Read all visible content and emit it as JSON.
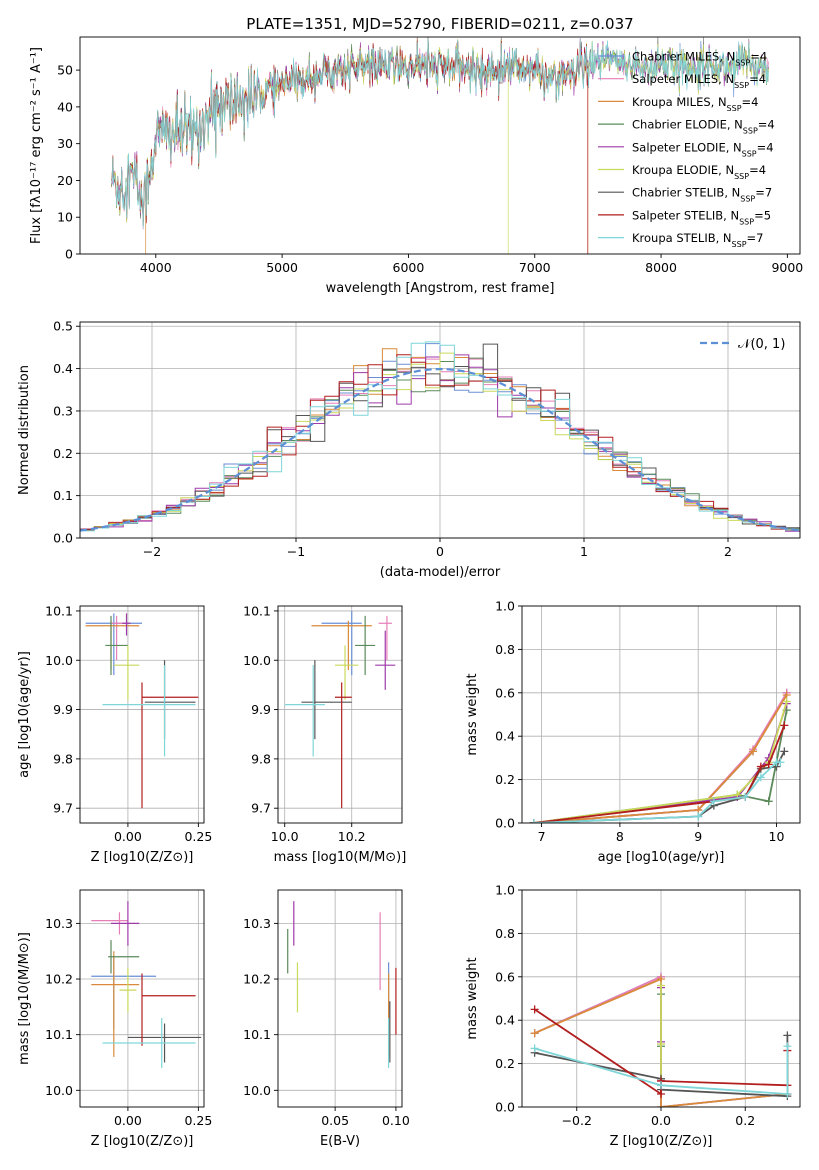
{
  "figure_title": "PLATE=1351, MJD=52790, FIBERID=0211, z=0.037",
  "series_colors": [
    "#6a8fd6",
    "#e67fb8",
    "#d98a3a",
    "#5b8a5b",
    "#9e3aa8",
    "#c9d95a",
    "#555555",
    "#b21e1e",
    "#7fd6d9"
  ],
  "chart_data": [
    {
      "id": "spectrum",
      "type": "line",
      "title": "PLATE=1351, MJD=52790, FIBERID=0211, z=0.037",
      "xlabel": "wavelength [Angstrom, rest frame]",
      "ylabel": "Flux [fλ10⁻¹⁷ erg cm⁻² s⁻¹ A⁻¹]",
      "xlim": [
        3400,
        9100
      ],
      "ylim": [
        0,
        59
      ],
      "xticks": [
        4000,
        5000,
        6000,
        7000,
        8000,
        9000
      ],
      "yticks": [
        0,
        10,
        20,
        30,
        40,
        50
      ],
      "grid": false,
      "legend_position": "right",
      "legend": [
        "Chabrier MILES, N_SSP=4",
        "Salpeter MILES, N_SSP=4",
        "Kroupa MILES, N_SSP=4",
        "Chabrier ELODIE, N_SSP=4",
        "Salpeter ELODIE, N_SSP=4",
        "Kroupa ELODIE, N_SSP=4",
        "Chabrier STELIB, N_SSP=7",
        "Salpeter STELIB, N_SSP=5",
        "Kroupa STELIB, N_SSP=7"
      ],
      "continuum": {
        "x": [
          3650,
          3700,
          3760,
          3800,
          3850,
          3900,
          3950,
          4000,
          4100,
          4200,
          4300,
          4400,
          4500,
          4600,
          4700,
          4800,
          4900,
          5000,
          5100,
          5200,
          5300,
          5400,
          5500,
          5600,
          5700,
          5800,
          5900,
          6000,
          6100,
          6200,
          6300,
          6400,
          6500,
          6600,
          6700,
          6800,
          6900,
          7000,
          7100,
          7200,
          7300,
          7400,
          7500,
          7600,
          7700,
          7800,
          7900,
          8000,
          8100,
          8200,
          8300,
          8400,
          8500,
          8600,
          8700,
          8800,
          8850
        ],
        "y": [
          21,
          18,
          20,
          22,
          19,
          13,
          22,
          32,
          33,
          33,
          33,
          37,
          40,
          41,
          42,
          43,
          45,
          46,
          47,
          48,
          49,
          50,
          50,
          51,
          51,
          51,
          51,
          51,
          51,
          51,
          51,
          51,
          50,
          50,
          50,
          51,
          51,
          50,
          48,
          49,
          48,
          51,
          52,
          53,
          51,
          52,
          50,
          52,
          51,
          51,
          52,
          51,
          51,
          52,
          51,
          51,
          50
        ]
      },
      "dropouts": [
        {
          "series": 2,
          "x": 3920
        },
        {
          "series": 5,
          "x": 6790
        },
        {
          "series": 2,
          "x": 7420
        },
        {
          "series": 7,
          "x": 7420
        }
      ]
    },
    {
      "id": "residuals",
      "type": "histogram",
      "xlabel": "(data-model)/error",
      "ylabel": "Normed distribution",
      "xlim": [
        -2.5,
        2.5
      ],
      "ylim": [
        0,
        0.51
      ],
      "xticks": [
        -2,
        -1,
        0,
        1,
        2
      ],
      "yticks": [
        0.0,
        0.1,
        0.2,
        0.3,
        0.4,
        0.5
      ],
      "grid": true,
      "bin_width": 0.1,
      "reference_label": "𝒩(0, 1)",
      "legend_position": "upper right"
    },
    {
      "id": "age_vs_Z",
      "type": "errorbar",
      "xlabel": "Z [log10(Z/Z⊙)]",
      "ylabel": "age  [log10(age/yr)]",
      "xlim": [
        -0.17,
        0.27
      ],
      "ylim": [
        9.67,
        10.11
      ],
      "xticks": [
        -0.25,
        0.0,
        0.25
      ],
      "xticklabels": [
        "",
        "0.00",
        "0.25"
      ],
      "yticks": [
        9.7,
        9.8,
        9.9,
        10.0,
        10.1
      ],
      "grid": true,
      "points": [
        {
          "s": 0,
          "x": -0.05,
          "y": 10.075,
          "xl": -0.15,
          "xh": 0.05,
          "yl": 9.97,
          "yh": 10.095
        },
        {
          "s": 1,
          "x": -0.04,
          "y": 10.075,
          "xl": -0.06,
          "xh": -0.01,
          "yl": 10.0,
          "yh": 10.09
        },
        {
          "s": 2,
          "x": -0.06,
          "y": 10.07,
          "xl": -0.15,
          "xh": 0.04,
          "yl": 9.98,
          "yh": 10.08
        },
        {
          "s": 3,
          "x": -0.06,
          "y": 10.03,
          "xl": -0.08,
          "xh": 0.0,
          "yl": 9.97,
          "yh": 10.09
        },
        {
          "s": 4,
          "x": -0.005,
          "y": 10.075,
          "xl": -0.02,
          "xh": 0.01,
          "yl": 10.05,
          "yh": 10.095
        },
        {
          "s": 5,
          "x": 0.0,
          "y": 9.99,
          "xl": -0.05,
          "xh": 0.04,
          "yl": 9.92,
          "yh": 10.03
        },
        {
          "s": 6,
          "x": 0.13,
          "y": 9.915,
          "xl": 0.06,
          "xh": 0.24,
          "yl": 9.84,
          "yh": 10.0
        },
        {
          "s": 7,
          "x": 0.05,
          "y": 9.925,
          "xl": 0.05,
          "xh": 0.25,
          "yl": 9.7,
          "yh": 9.955
        },
        {
          "s": 8,
          "x": 0.13,
          "y": 9.91,
          "xl": -0.09,
          "xh": 0.24,
          "yl": 9.805,
          "yh": 9.99
        }
      ]
    },
    {
      "id": "age_vs_mass",
      "type": "errorbar",
      "xlabel": "mass [log10(M/M⊙)]",
      "xlim": [
        9.98,
        10.35
      ],
      "ylim": [
        9.67,
        10.11
      ],
      "xticks": [
        10.0,
        10.2
      ],
      "yticks": [
        9.7,
        9.8,
        9.9,
        10.0,
        10.1
      ],
      "grid": true,
      "points": [
        {
          "s": 0,
          "x": 10.2,
          "y": 10.075,
          "xl": 10.11,
          "xh": 10.23,
          "yl": 9.97,
          "yh": 10.1
        },
        {
          "s": 1,
          "x": 10.305,
          "y": 10.075,
          "xl": 10.28,
          "xh": 10.32,
          "yl": 10.0,
          "yh": 10.09
        },
        {
          "s": 2,
          "x": 10.19,
          "y": 10.07,
          "xl": 10.08,
          "xh": 10.26,
          "yl": 9.98,
          "yh": 10.08
        },
        {
          "s": 3,
          "x": 10.24,
          "y": 10.03,
          "xl": 10.21,
          "xh": 10.27,
          "yl": 9.97,
          "yh": 10.09
        },
        {
          "s": 4,
          "x": 10.3,
          "y": 9.99,
          "xl": 10.27,
          "xh": 10.33,
          "yl": 9.94,
          "yh": 10.06
        },
        {
          "s": 5,
          "x": 10.18,
          "y": 9.99,
          "xl": 10.15,
          "xh": 10.22,
          "yl": 9.92,
          "yh": 10.03
        },
        {
          "s": 6,
          "x": 10.09,
          "y": 9.915,
          "xl": 10.05,
          "xh": 10.2,
          "yl": 9.84,
          "yh": 10.0
        },
        {
          "s": 7,
          "x": 10.17,
          "y": 9.925,
          "xl": 10.15,
          "xh": 10.2,
          "yl": 9.7,
          "yh": 9.955
        },
        {
          "s": 8,
          "x": 10.085,
          "y": 9.91,
          "xl": 10.0,
          "xh": 10.12,
          "yl": 9.805,
          "yh": 9.99
        }
      ]
    },
    {
      "id": "weight_vs_age",
      "type": "line",
      "xlabel": "age  [log10(age/yr)]",
      "ylabel": "mass weight",
      "xlim": [
        6.75,
        10.3
      ],
      "ylim": [
        0,
        1
      ],
      "xticks": [
        7,
        8,
        9,
        10
      ],
      "yticks": [
        0.0,
        0.2,
        0.4,
        0.6,
        0.8,
        1.0
      ],
      "grid": true,
      "series": [
        {
          "s": 0,
          "x": [
            6.9,
            9.0,
            9.7,
            10.13
          ],
          "y": [
            0.0,
            0.06,
            0.33,
            0.6
          ]
        },
        {
          "s": 1,
          "x": [
            6.9,
            9.0,
            9.7,
            10.13
          ],
          "y": [
            0.0,
            0.06,
            0.34,
            0.6
          ]
        },
        {
          "s": 2,
          "x": [
            6.9,
            9.0,
            9.7,
            10.13
          ],
          "y": [
            0.0,
            0.06,
            0.33,
            0.59
          ]
        },
        {
          "s": 3,
          "x": [
            6.9,
            9.5,
            9.9,
            10.13
          ],
          "y": [
            0.0,
            0.13,
            0.1,
            0.52
          ]
        },
        {
          "s": 4,
          "x": [
            6.9,
            9.5,
            9.9,
            10.13
          ],
          "y": [
            0.0,
            0.12,
            0.3,
            0.55
          ]
        },
        {
          "s": 5,
          "x": [
            6.9,
            9.5,
            9.9,
            10.13
          ],
          "y": [
            0.0,
            0.13,
            0.28,
            0.56
          ]
        },
        {
          "s": 6,
          "x": [
            6.9,
            9.0,
            9.2,
            9.6,
            9.8,
            10.0,
            10.1
          ],
          "y": [
            0.0,
            0.03,
            0.08,
            0.12,
            0.25,
            0.26,
            0.33
          ]
        },
        {
          "s": 7,
          "x": [
            6.9,
            9.2,
            9.6,
            9.8,
            9.9,
            10.1
          ],
          "y": [
            0.0,
            0.1,
            0.12,
            0.26,
            0.27,
            0.45
          ]
        },
        {
          "s": 8,
          "x": [
            6.9,
            9.0,
            9.2,
            9.6,
            9.8,
            10.0,
            10.05
          ],
          "y": [
            0.0,
            0.03,
            0.1,
            0.12,
            0.21,
            0.28,
            0.28
          ]
        }
      ]
    },
    {
      "id": "mass_vs_Z",
      "type": "errorbar",
      "xlabel": "Z [log10(Z/Z⊙)]",
      "ylabel": "mass [log10(M/M⊙)]",
      "xlim": [
        -0.17,
        0.27
      ],
      "ylim": [
        9.97,
        10.36
      ],
      "xticks": [
        -0.25,
        0.0,
        0.25
      ],
      "xticklabels": [
        "",
        "0.00",
        "0.25"
      ],
      "yticks": [
        10.0,
        10.1,
        10.2,
        10.3
      ],
      "grid": true,
      "points": [
        {
          "s": 0,
          "x": -0.05,
          "y": 10.205,
          "xl": -0.13,
          "xh": 0.1,
          "yl": 10.11,
          "yh": 10.24
        },
        {
          "s": 1,
          "x": -0.03,
          "y": 10.305,
          "xl": -0.13,
          "xh": 0.0,
          "yl": 10.28,
          "yh": 10.32
        },
        {
          "s": 2,
          "x": -0.05,
          "y": 10.19,
          "xl": -0.13,
          "xh": 0.04,
          "yl": 10.06,
          "yh": 10.25
        },
        {
          "s": 3,
          "x": -0.06,
          "y": 10.24,
          "xl": -0.07,
          "xh": 0.04,
          "yl": 10.21,
          "yh": 10.27
        },
        {
          "s": 4,
          "x": 0.0,
          "y": 10.3,
          "xl": -0.06,
          "xh": 0.04,
          "yl": 10.26,
          "yh": 10.34
        },
        {
          "s": 5,
          "x": 0.0,
          "y": 10.18,
          "xl": -0.03,
          "xh": 0.03,
          "yl": 10.14,
          "yh": 10.22
        },
        {
          "s": 6,
          "x": 0.13,
          "y": 10.095,
          "xl": 0.0,
          "xh": 0.26,
          "yl": 10.05,
          "yh": 10.12
        },
        {
          "s": 7,
          "x": 0.05,
          "y": 10.17,
          "xl": 0.05,
          "xh": 0.24,
          "yl": 10.08,
          "yh": 10.21
        },
        {
          "s": 8,
          "x": 0.12,
          "y": 10.085,
          "xl": -0.09,
          "xh": 0.24,
          "yl": 10.04,
          "yh": 10.13
        }
      ]
    },
    {
      "id": "mass_vs_ebv",
      "type": "errorbar",
      "xlabel": "E(B-V)",
      "xlim": [
        0.003,
        0.105
      ],
      "ylim": [
        9.97,
        10.36
      ],
      "xticks": [
        0.05,
        0.1
      ],
      "xticklabels": [
        "0.05",
        "0.10"
      ],
      "yticks": [
        10.0,
        10.1,
        10.2,
        10.3
      ],
      "grid": true,
      "points": [
        {
          "s": 0,
          "x": 0.094,
          "y": 10.2,
          "yl": 10.1,
          "yh": 10.23
        },
        {
          "s": 1,
          "x": 0.087,
          "y": 10.25,
          "yl": 10.18,
          "yh": 10.32
        },
        {
          "s": 2,
          "x": 0.094,
          "y": 10.15,
          "yl": 10.06,
          "yh": 10.21
        },
        {
          "s": 3,
          "x": 0.011,
          "y": 10.25,
          "yl": 10.21,
          "yh": 10.29
        },
        {
          "s": 4,
          "x": 0.016,
          "y": 10.3,
          "yl": 10.26,
          "yh": 10.34
        },
        {
          "s": 5,
          "x": 0.019,
          "y": 10.19,
          "yl": 10.14,
          "yh": 10.23
        },
        {
          "s": 6,
          "x": 0.095,
          "y": 10.1,
          "yl": 10.05,
          "yh": 10.16
        },
        {
          "s": 7,
          "x": 0.1,
          "y": 10.16,
          "yl": 10.1,
          "yh": 10.22
        },
        {
          "s": 8,
          "x": 0.094,
          "y": 10.09,
          "yl": 10.04,
          "yh": 10.13
        }
      ]
    },
    {
      "id": "weight_vs_Z",
      "type": "line",
      "xlabel": "Z [log10(Z/Z⊙)]",
      "ylabel": "mass weight",
      "xlim": [
        -0.33,
        0.33
      ],
      "ylim": [
        0,
        1
      ],
      "xticks": [
        -0.2,
        0.0,
        0.2
      ],
      "yticks": [
        0.0,
        0.2,
        0.4,
        0.6,
        0.8,
        1.0
      ],
      "grid": true,
      "series": [
        {
          "s": 0,
          "x": [
            -0.3,
            0.0,
            0.0,
            0.3
          ],
          "y": [
            0.34,
            0.6,
            0.0,
            0.06
          ]
        },
        {
          "s": 1,
          "x": [
            -0.3,
            0.0,
            0.0,
            0.3
          ],
          "y": [
            0.34,
            0.6,
            0.0,
            0.06
          ]
        },
        {
          "s": 2,
          "x": [
            -0.3,
            0.0,
            0.0,
            0.3
          ],
          "y": [
            0.34,
            0.59,
            0.0,
            0.06
          ]
        },
        {
          "s": 3,
          "x": [
            0.0,
            0.0,
            0.0
          ],
          "y": [
            0.52,
            0.28,
            0.1
          ]
        },
        {
          "s": 4,
          "x": [
            0.0,
            0.0,
            0.0
          ],
          "y": [
            0.55,
            0.3,
            0.12
          ]
        },
        {
          "s": 5,
          "x": [
            0.0,
            0.0,
            0.0
          ],
          "y": [
            0.56,
            0.29,
            0.13
          ]
        },
        {
          "s": 6,
          "x": [
            -0.3,
            0.0,
            0.0,
            0.3,
            0.3
          ],
          "y": [
            0.25,
            0.13,
            0.08,
            0.05,
            0.33
          ]
        },
        {
          "s": 7,
          "x": [
            -0.3,
            0.0,
            0.0,
            0.3,
            0.3
          ],
          "y": [
            0.45,
            0.06,
            0.12,
            0.1,
            0.26
          ]
        },
        {
          "s": 8,
          "x": [
            -0.3,
            0.0,
            0.0,
            0.3,
            0.3
          ],
          "y": [
            0.27,
            0.1,
            0.1,
            0.06,
            0.28
          ]
        }
      ]
    }
  ]
}
